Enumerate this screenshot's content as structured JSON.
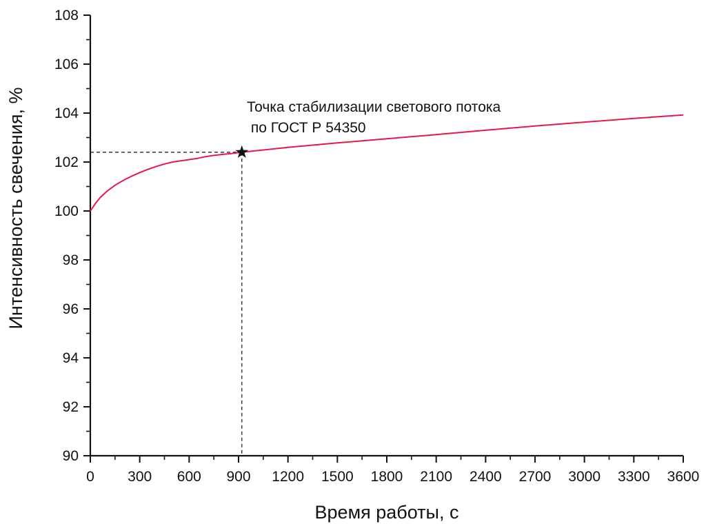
{
  "chart_data": {
    "type": "line",
    "xlabel": "Время работы, с",
    "ylabel": "Интенсивность свечения, %",
    "xlim": [
      0,
      3600
    ],
    "ylim": [
      90,
      108
    ],
    "xticks": [
      0,
      300,
      600,
      900,
      1200,
      1500,
      1800,
      2100,
      2400,
      2700,
      3000,
      3300,
      3600
    ],
    "xtick_labels": [
      "0",
      "300",
      "600",
      "900",
      "1200",
      "1500",
      "1800",
      "2100",
      "2400",
      "2700",
      "3000",
      "3300",
      "3600"
    ],
    "yticks": [
      90,
      92,
      94,
      96,
      98,
      100,
      102,
      104,
      106,
      108
    ],
    "ytick_labels": [
      "90",
      "92",
      "94",
      "96",
      "98",
      "100",
      "102",
      "104",
      "106",
      "108"
    ],
    "grid": false,
    "series": [
      {
        "color": "#e8174a",
        "x": [
          0,
          30,
          60,
          100,
          150,
          200,
          250,
          300,
          350,
          400,
          450,
          500,
          550,
          600,
          650,
          700,
          750,
          800,
          850,
          920,
          1200,
          1500,
          1800,
          2100,
          2400,
          2700,
          3000,
          3300,
          3600
        ],
        "y": [
          100.0,
          100.3,
          100.55,
          100.8,
          101.05,
          101.25,
          101.42,
          101.57,
          101.7,
          101.82,
          101.92,
          102.0,
          102.05,
          102.1,
          102.15,
          102.22,
          102.27,
          102.31,
          102.34,
          102.4,
          102.6,
          102.78,
          102.95,
          103.12,
          103.3,
          103.47,
          103.63,
          103.78,
          103.92
        ]
      }
    ],
    "marker": {
      "x": 920,
      "y": 102.4,
      "symbol": "star"
    },
    "annotation_lines": [
      "Точка стабилизации светового потока",
      " по ГОСТ Р 54350"
    ]
  },
  "colors": {
    "line": "#e8174a",
    "axis": "#111111",
    "guide": "#222222"
  }
}
